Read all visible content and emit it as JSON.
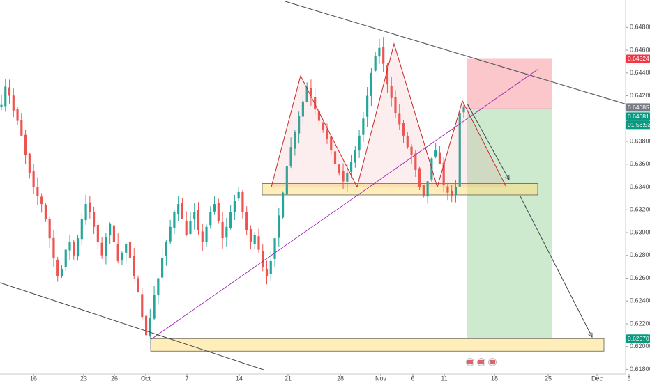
{
  "chart_data": {
    "type": "candlestick",
    "title": "",
    "xlabel": "",
    "ylabel": "",
    "ylim": [
      0.6176,
      0.6504
    ],
    "y_ticks": [
      "0.64800",
      "0.64600",
      "0.64400",
      "0.64200",
      "0.64000",
      "0.63800",
      "0.63600",
      "0.63400",
      "0.63200",
      "0.63000",
      "0.62800",
      "0.62600",
      "0.62400",
      "0.62200",
      "0.62000",
      "0.61800"
    ],
    "x_ticks": [
      "16",
      "23",
      "26",
      "Oct",
      "7",
      "14",
      "21",
      "28",
      "Nov",
      "6",
      "11",
      "18",
      "25",
      "Dec",
      "5"
    ],
    "price_labels": [
      {
        "value": "0.64524",
        "color": "#f23645"
      },
      {
        "value": "0.64085",
        "color": "#787b86"
      },
      {
        "value": "0.64081",
        "color": "#089981"
      },
      {
        "value": "01:58:53",
        "color": "#089981"
      },
      {
        "value": "0.62070",
        "color": "#089981"
      }
    ],
    "current_price": 0.64085,
    "short_position": {
      "entry": 0.64085,
      "stop": 0.64524,
      "target": 0.6207
    },
    "zones": [
      {
        "name": "neckline-zone",
        "from": 0.6333,
        "to": 0.6343
      },
      {
        "name": "target-zone",
        "from": 0.6196,
        "to": 0.6207
      }
    ],
    "price_path": [
      0.6412,
      0.6428,
      0.642,
      0.6407,
      0.6398,
      0.6385,
      0.6368,
      0.6352,
      0.634,
      0.6332,
      0.6325,
      0.6312,
      0.6295,
      0.6278,
      0.6262,
      0.6268,
      0.6285,
      0.6292,
      0.628,
      0.6295,
      0.6312,
      0.6325,
      0.6318,
      0.6305,
      0.6292,
      0.628,
      0.6296,
      0.6308,
      0.6292,
      0.6275,
      0.6282,
      0.629,
      0.6278,
      0.6262,
      0.6248,
      0.6226,
      0.621,
      0.6225,
      0.6245,
      0.626,
      0.6278,
      0.6292,
      0.6305,
      0.6318,
      0.6325,
      0.6312,
      0.6298,
      0.631,
      0.6318,
      0.6302,
      0.6292,
      0.6305,
      0.6318,
      0.6325,
      0.631,
      0.6295,
      0.6305,
      0.6318,
      0.6328,
      0.6336,
      0.6318,
      0.6302,
      0.6292,
      0.6298,
      0.6285,
      0.627,
      0.6262,
      0.6275,
      0.6295,
      0.6315,
      0.6335,
      0.6358,
      0.6375,
      0.6388,
      0.6402,
      0.6415,
      0.6428,
      0.642,
      0.6408,
      0.6398,
      0.639,
      0.6382,
      0.6372,
      0.636,
      0.6352,
      0.6345,
      0.6352,
      0.6362,
      0.6372,
      0.6385,
      0.64,
      0.642,
      0.644,
      0.6455,
      0.6462,
      0.6448,
      0.643,
      0.6418,
      0.6405,
      0.6395,
      0.6385,
      0.6375,
      0.6368,
      0.6355,
      0.634,
      0.6332,
      0.6345,
      0.6365,
      0.6372,
      0.636,
      0.6342,
      0.6335,
      0.6332,
      0.634,
      0.6405,
      0.641
    ],
    "series": []
  }
}
